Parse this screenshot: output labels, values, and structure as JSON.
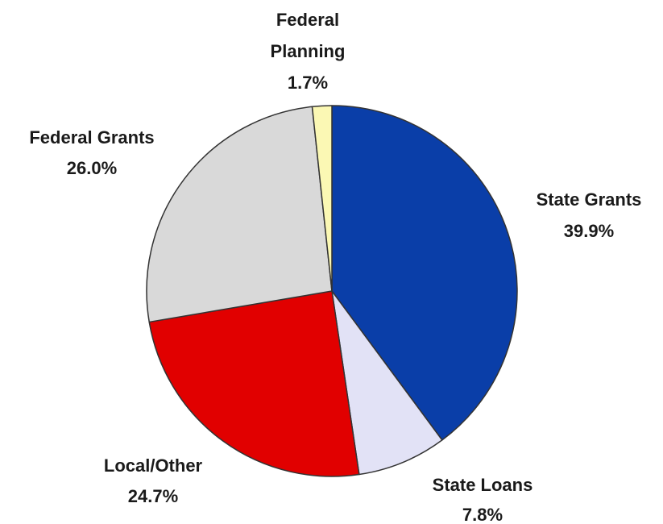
{
  "chart_data": {
    "type": "pie",
    "title": "",
    "slices": [
      {
        "label_lines": [
          "State Grants"
        ],
        "value_label": "39.9%",
        "value": 39.9,
        "color": "#0a3ea8"
      },
      {
        "label_lines": [
          "State Loans"
        ],
        "value_label": "7.8%",
        "value": 7.8,
        "color": "#e2e2f6"
      },
      {
        "label_lines": [
          "Local/Other"
        ],
        "value_label": "24.7%",
        "value": 24.7,
        "color": "#e10000"
      },
      {
        "label_lines": [
          "Federal Grants"
        ],
        "value_label": "26.0%",
        "value": 26.0,
        "color": "#d9d9d9"
      },
      {
        "label_lines": [
          "Federal",
          "Planning"
        ],
        "value_label": "1.7%",
        "value": 1.7,
        "color": "#fbf8b4"
      }
    ]
  }
}
